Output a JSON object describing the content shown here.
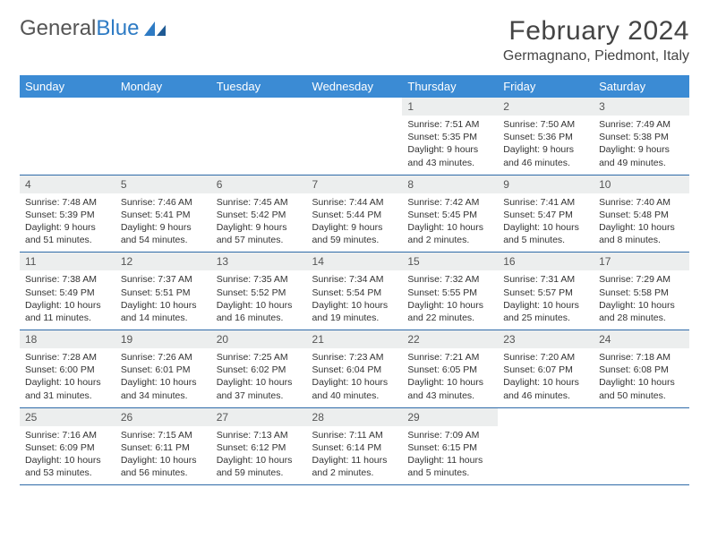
{
  "logo": {
    "text1": "General",
    "text2": "Blue"
  },
  "title": "February 2024",
  "location": "Germagnano, Piedmont, Italy",
  "colors": {
    "header_bg": "#3b8bd4",
    "header_text": "#ffffff",
    "daynum_bg": "#eceeee",
    "row_border": "#2e6aa8",
    "logo_gray": "#555555",
    "logo_blue": "#2e7bc4"
  },
  "fonts": {
    "month_title_pt": 30,
    "location_pt": 16,
    "dow_pt": 13,
    "daynum_pt": 12,
    "body_pt": 10.5
  },
  "days_of_week": [
    "Sunday",
    "Monday",
    "Tuesday",
    "Wednesday",
    "Thursday",
    "Friday",
    "Saturday"
  ],
  "weeks": [
    [
      {
        "n": "",
        "sunrise": "",
        "sunset": "",
        "daylight": ""
      },
      {
        "n": "",
        "sunrise": "",
        "sunset": "",
        "daylight": ""
      },
      {
        "n": "",
        "sunrise": "",
        "sunset": "",
        "daylight": ""
      },
      {
        "n": "",
        "sunrise": "",
        "sunset": "",
        "daylight": ""
      },
      {
        "n": "1",
        "sunrise": "Sunrise: 7:51 AM",
        "sunset": "Sunset: 5:35 PM",
        "daylight": "Daylight: 9 hours and 43 minutes."
      },
      {
        "n": "2",
        "sunrise": "Sunrise: 7:50 AM",
        "sunset": "Sunset: 5:36 PM",
        "daylight": "Daylight: 9 hours and 46 minutes."
      },
      {
        "n": "3",
        "sunrise": "Sunrise: 7:49 AM",
        "sunset": "Sunset: 5:38 PM",
        "daylight": "Daylight: 9 hours and 49 minutes."
      }
    ],
    [
      {
        "n": "4",
        "sunrise": "Sunrise: 7:48 AM",
        "sunset": "Sunset: 5:39 PM",
        "daylight": "Daylight: 9 hours and 51 minutes."
      },
      {
        "n": "5",
        "sunrise": "Sunrise: 7:46 AM",
        "sunset": "Sunset: 5:41 PM",
        "daylight": "Daylight: 9 hours and 54 minutes."
      },
      {
        "n": "6",
        "sunrise": "Sunrise: 7:45 AM",
        "sunset": "Sunset: 5:42 PM",
        "daylight": "Daylight: 9 hours and 57 minutes."
      },
      {
        "n": "7",
        "sunrise": "Sunrise: 7:44 AM",
        "sunset": "Sunset: 5:44 PM",
        "daylight": "Daylight: 9 hours and 59 minutes."
      },
      {
        "n": "8",
        "sunrise": "Sunrise: 7:42 AM",
        "sunset": "Sunset: 5:45 PM",
        "daylight": "Daylight: 10 hours and 2 minutes."
      },
      {
        "n": "9",
        "sunrise": "Sunrise: 7:41 AM",
        "sunset": "Sunset: 5:47 PM",
        "daylight": "Daylight: 10 hours and 5 minutes."
      },
      {
        "n": "10",
        "sunrise": "Sunrise: 7:40 AM",
        "sunset": "Sunset: 5:48 PM",
        "daylight": "Daylight: 10 hours and 8 minutes."
      }
    ],
    [
      {
        "n": "11",
        "sunrise": "Sunrise: 7:38 AM",
        "sunset": "Sunset: 5:49 PM",
        "daylight": "Daylight: 10 hours and 11 minutes."
      },
      {
        "n": "12",
        "sunrise": "Sunrise: 7:37 AM",
        "sunset": "Sunset: 5:51 PM",
        "daylight": "Daylight: 10 hours and 14 minutes."
      },
      {
        "n": "13",
        "sunrise": "Sunrise: 7:35 AM",
        "sunset": "Sunset: 5:52 PM",
        "daylight": "Daylight: 10 hours and 16 minutes."
      },
      {
        "n": "14",
        "sunrise": "Sunrise: 7:34 AM",
        "sunset": "Sunset: 5:54 PM",
        "daylight": "Daylight: 10 hours and 19 minutes."
      },
      {
        "n": "15",
        "sunrise": "Sunrise: 7:32 AM",
        "sunset": "Sunset: 5:55 PM",
        "daylight": "Daylight: 10 hours and 22 minutes."
      },
      {
        "n": "16",
        "sunrise": "Sunrise: 7:31 AM",
        "sunset": "Sunset: 5:57 PM",
        "daylight": "Daylight: 10 hours and 25 minutes."
      },
      {
        "n": "17",
        "sunrise": "Sunrise: 7:29 AM",
        "sunset": "Sunset: 5:58 PM",
        "daylight": "Daylight: 10 hours and 28 minutes."
      }
    ],
    [
      {
        "n": "18",
        "sunrise": "Sunrise: 7:28 AM",
        "sunset": "Sunset: 6:00 PM",
        "daylight": "Daylight: 10 hours and 31 minutes."
      },
      {
        "n": "19",
        "sunrise": "Sunrise: 7:26 AM",
        "sunset": "Sunset: 6:01 PM",
        "daylight": "Daylight: 10 hours and 34 minutes."
      },
      {
        "n": "20",
        "sunrise": "Sunrise: 7:25 AM",
        "sunset": "Sunset: 6:02 PM",
        "daylight": "Daylight: 10 hours and 37 minutes."
      },
      {
        "n": "21",
        "sunrise": "Sunrise: 7:23 AM",
        "sunset": "Sunset: 6:04 PM",
        "daylight": "Daylight: 10 hours and 40 minutes."
      },
      {
        "n": "22",
        "sunrise": "Sunrise: 7:21 AM",
        "sunset": "Sunset: 6:05 PM",
        "daylight": "Daylight: 10 hours and 43 minutes."
      },
      {
        "n": "23",
        "sunrise": "Sunrise: 7:20 AM",
        "sunset": "Sunset: 6:07 PM",
        "daylight": "Daylight: 10 hours and 46 minutes."
      },
      {
        "n": "24",
        "sunrise": "Sunrise: 7:18 AM",
        "sunset": "Sunset: 6:08 PM",
        "daylight": "Daylight: 10 hours and 50 minutes."
      }
    ],
    [
      {
        "n": "25",
        "sunrise": "Sunrise: 7:16 AM",
        "sunset": "Sunset: 6:09 PM",
        "daylight": "Daylight: 10 hours and 53 minutes."
      },
      {
        "n": "26",
        "sunrise": "Sunrise: 7:15 AM",
        "sunset": "Sunset: 6:11 PM",
        "daylight": "Daylight: 10 hours and 56 minutes."
      },
      {
        "n": "27",
        "sunrise": "Sunrise: 7:13 AM",
        "sunset": "Sunset: 6:12 PM",
        "daylight": "Daylight: 10 hours and 59 minutes."
      },
      {
        "n": "28",
        "sunrise": "Sunrise: 7:11 AM",
        "sunset": "Sunset: 6:14 PM",
        "daylight": "Daylight: 11 hours and 2 minutes."
      },
      {
        "n": "29",
        "sunrise": "Sunrise: 7:09 AM",
        "sunset": "Sunset: 6:15 PM",
        "daylight": "Daylight: 11 hours and 5 minutes."
      },
      {
        "n": "",
        "sunrise": "",
        "sunset": "",
        "daylight": ""
      },
      {
        "n": "",
        "sunrise": "",
        "sunset": "",
        "daylight": ""
      }
    ]
  ]
}
